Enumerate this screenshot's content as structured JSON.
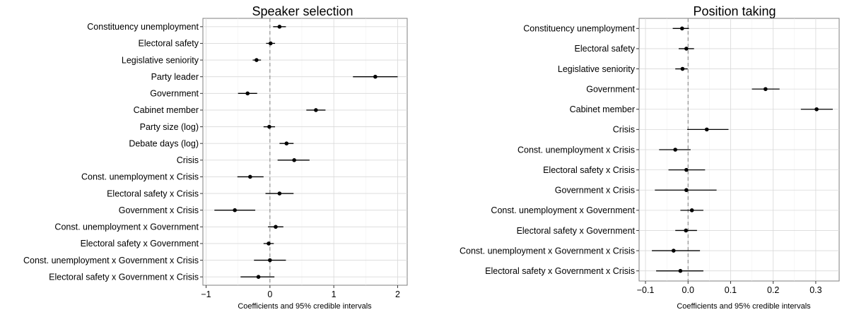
{
  "chart_data": [
    {
      "type": "scatter",
      "subtype": "coefficient-plot",
      "title": "Speaker selection",
      "xlabel": "Coefficients and 95% credible intervals",
      "ylabel": "",
      "xlim": [
        -1.05,
        2.15
      ],
      "xticks": [
        -1,
        0,
        1,
        2
      ],
      "xtick_labels": [
        "−1",
        "0",
        "1",
        "2"
      ],
      "grid": true,
      "reference_line": 0,
      "categories": [
        "Constituency unemployment",
        "Electoral safety",
        "Legislative seniority",
        "Party leader",
        "Government",
        "Cabinet member",
        "Party size (log)",
        "Debate days (log)",
        "Crisis",
        "Const. unemployment x Crisis",
        "Electoral safety x Crisis",
        "Government x Crisis",
        "Const. unemployment x Government",
        "Electoral safety x Government",
        "Const. unemployment x Government x Crisis",
        "Electoral safety x Government x Crisis"
      ],
      "estimates": [
        0.15,
        0.01,
        -0.21,
        1.65,
        -0.35,
        0.72,
        -0.01,
        0.26,
        0.38,
        -0.31,
        0.15,
        -0.55,
        0.09,
        -0.02,
        0.0,
        -0.18
      ],
      "ci_lower": [
        0.05,
        -0.06,
        -0.27,
        1.3,
        -0.5,
        0.57,
        -0.1,
        0.15,
        0.12,
        -0.51,
        -0.07,
        -0.87,
        -0.03,
        -0.1,
        -0.25,
        -0.46
      ],
      "ci_upper": [
        0.25,
        0.08,
        -0.14,
        2.0,
        -0.2,
        0.87,
        0.08,
        0.37,
        0.62,
        -0.1,
        0.37,
        -0.23,
        0.21,
        0.06,
        0.25,
        0.07
      ]
    },
    {
      "type": "scatter",
      "subtype": "coefficient-plot",
      "title": "Position taking",
      "xlabel": "Coefficients and 95% credible intervals",
      "ylabel": "",
      "xlim": [
        -0.115,
        0.355
      ],
      "xticks": [
        -0.1,
        0.0,
        0.1,
        0.2,
        0.3
      ],
      "xtick_labels": [
        "−0.1",
        "0.0",
        "0.1",
        "0.2",
        "0.3"
      ],
      "grid": true,
      "reference_line": 0,
      "categories": [
        "Constituency unemployment",
        "Electoral safety",
        "Legislative seniority",
        "Government",
        "Cabinet member",
        "Crisis",
        "Const. unemployment x Crisis",
        "Electoral safety x Crisis",
        "Government x Crisis",
        "Const. unemployment x Government",
        "Electoral safety x Government",
        "Const. unemployment x Government x Crisis",
        "Electoral safety x Government x Crisis"
      ],
      "estimates": [
        -0.014,
        -0.004,
        -0.013,
        0.182,
        0.302,
        0.044,
        -0.03,
        -0.004,
        -0.004,
        0.009,
        -0.005,
        -0.034,
        -0.018
      ],
      "ci_lower": [
        -0.036,
        -0.022,
        -0.03,
        0.15,
        0.265,
        -0.002,
        -0.068,
        -0.046,
        -0.078,
        -0.018,
        -0.03,
        -0.085,
        -0.075
      ],
      "ci_upper": [
        0.002,
        0.014,
        -0.001,
        0.215,
        0.34,
        0.095,
        0.006,
        0.04,
        0.067,
        0.036,
        0.021,
        0.028,
        0.036
      ]
    }
  ]
}
